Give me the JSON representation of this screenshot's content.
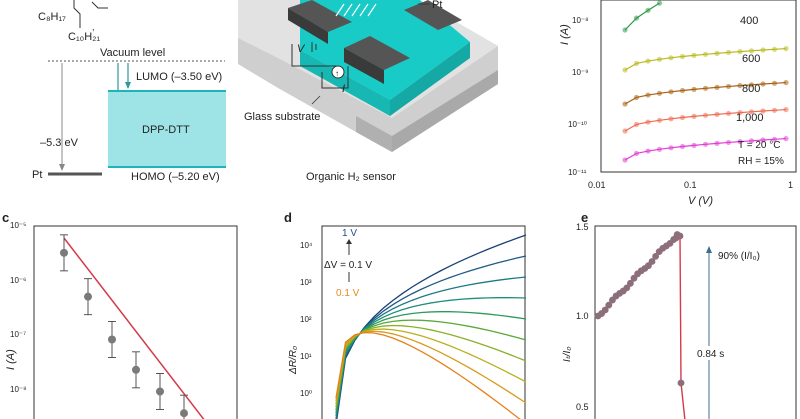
{
  "panel_a": {
    "labels": [
      "C₈H₁₇",
      "C₁₀H₂₁"
    ],
    "vacuum": "Vacuum level",
    "lumo": "LUMO (–3.50 eV)",
    "homo": "HOMO (–5.20 eV)",
    "material": "DPP-DTT",
    "pt_energy": "–5.3 eV",
    "pt": "Pt"
  },
  "panel_device": {
    "pt": "Pt",
    "v": "V",
    "i": "I",
    "substrate": "Glass substrate",
    "caption": "Organic H₂ sensor"
  },
  "panel_b": {
    "ylabel": "I (A)",
    "xlabel": "V (V)",
    "yticks": [
      "10⁻⁸",
      "10⁻⁹",
      "10⁻¹⁰",
      "10⁻¹¹"
    ],
    "xticks": [
      "0.01",
      "0.1",
      "1"
    ],
    "temp": "T = 20 °C",
    "rh": "RH = 15%",
    "curves": [
      {
        "label": "",
        "color": "#2e9a4a"
      },
      {
        "label": "400",
        "color": "#b9b91d"
      },
      {
        "label": "600",
        "color": "#a8610f"
      },
      {
        "label": "800",
        "color": "#ef6a4e"
      },
      {
        "label": "1,000",
        "color": "#e23cd6"
      }
    ]
  },
  "panel_c": {
    "letter": "c",
    "ylabel": "I (A)",
    "yticks": [
      "10⁻⁵",
      "10⁻⁶",
      "10⁻⁷",
      "10⁻⁸"
    ]
  },
  "panel_d": {
    "letter": "d",
    "ylabel": "ΔR/R₀",
    "yticks": [
      "10⁴",
      "10³",
      "10²",
      "10¹",
      "10⁰"
    ],
    "top": "1 V",
    "delta": "ΔV = 0.1 V",
    "bottom": "0.1 V"
  },
  "panel_e": {
    "letter": "e",
    "ylabel": "Iₜ/I₀",
    "yticks": [
      "1.5",
      "1.0",
      "0.5"
    ],
    "pct": "90% (I/I₀)",
    "time": "0.84 s"
  },
  "chart_data": [
    {
      "type": "scatter",
      "panel": "c",
      "ylabel": "I (A)",
      "log_y": true,
      "points": [
        {
          "i": 1,
          "y": 3.5e-06
        },
        {
          "i": 2,
          "y": 5.5e-07
        },
        {
          "i": 3,
          "y": 9e-08
        },
        {
          "i": 4,
          "y": 2.5e-08
        },
        {
          "i": 5,
          "y": 1e-08
        },
        {
          "i": 6,
          "y": 4e-09
        }
      ]
    },
    {
      "type": "line",
      "panel": "b",
      "xlabel": "V (V)",
      "ylabel": "I (A)",
      "log_x": true,
      "log_y": true
    },
    {
      "type": "line",
      "panel": "d",
      "ylabel": "ΔR/R₀",
      "log_y": true
    },
    {
      "type": "scatter",
      "panel": "e",
      "ylabel": "Iₜ/I₀",
      "ylim": [
        0.5,
        1.5
      ]
    }
  ]
}
